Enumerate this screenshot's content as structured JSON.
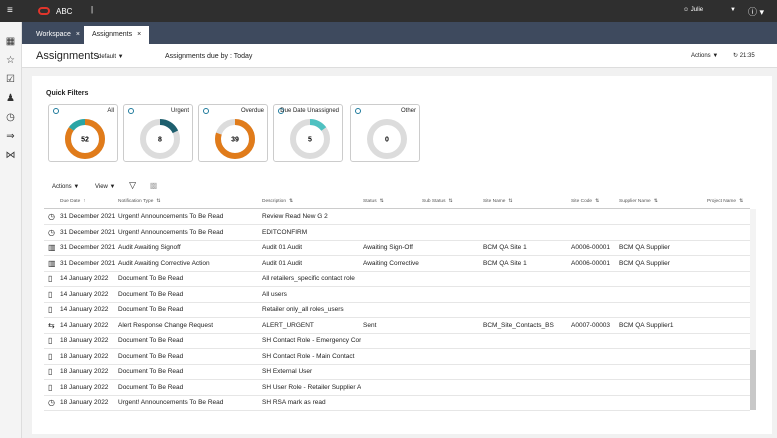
{
  "header": {
    "brand": "ABC",
    "user": "Julie"
  },
  "tabs": [
    "Workspace",
    "Assignments"
  ],
  "page": {
    "title": "Assignments",
    "view": "default",
    "due_by": "Assignments due by : Today",
    "actions": "Actions",
    "refresh_time": "21:35"
  },
  "quick_filters": {
    "title": "Quick Filters",
    "items": [
      {
        "label": "All",
        "count": 52
      },
      {
        "label": "Urgent",
        "count": 8
      },
      {
        "label": "Overdue",
        "count": 39
      },
      {
        "label": "Due Date Unassigned",
        "count": 5
      },
      {
        "label": "Other",
        "count": 0
      }
    ]
  },
  "toolbar": {
    "actions": "Actions",
    "view": "View"
  },
  "table": {
    "columns": [
      "Due Date",
      "Notification Type",
      "Description",
      "Status",
      "Sub Status",
      "Site Name",
      "Site Code",
      "Supplier Name",
      "Project Name"
    ],
    "rows": [
      {
        "due_date": "31 December 2021",
        "type": "Urgent! Announcements To Be Read",
        "description": "Review Read New G 2"
      },
      {
        "due_date": "31 December 2021",
        "type": "Urgent! Announcements To Be Read",
        "description": "EDITCONFIRM"
      },
      {
        "due_date": "31 December 2021",
        "type": "Audit Awaiting Signoff",
        "description": "Audit 01 Audit",
        "status": "Awaiting Sign-Off",
        "site_name": "BCM QA Site 1",
        "site_code": "A0006-00001",
        "supplier_name": "BCM QA Supplier"
      },
      {
        "due_date": "31 December 2021",
        "type": "Audit Awaiting Corrective Action",
        "description": "Audit 01 Audit",
        "status": "Awaiting Corrective",
        "site_name": "BCM QA Site 1",
        "site_code": "A0006-00001",
        "supplier_name": "BCM QA Supplier"
      },
      {
        "due_date": "14 January 2022",
        "type": "Document To Be Read",
        "description": "All retailers_specific contact role"
      },
      {
        "due_date": "14 January 2022",
        "type": "Document To Be Read",
        "description": "All users"
      },
      {
        "due_date": "14 January 2022",
        "type": "Document To Be Read",
        "description": "Retailer only_all roles_users"
      },
      {
        "due_date": "14 January 2022",
        "type": "Alert Response Change Request",
        "description": "ALERT_URGENT",
        "status": "Sent",
        "site_name": "BCM_Site_Contacts_BS",
        "site_code": "A0007-00003",
        "supplier_name": "BCM QA Supplier1"
      },
      {
        "due_date": "18 January 2022",
        "type": "Document To Be Read",
        "description": "SH Contact Role - Emergency Cor"
      },
      {
        "due_date": "18 January 2022",
        "type": "Document To Be Read",
        "description": "SH Contact Role - Main Contact"
      },
      {
        "due_date": "18 January 2022",
        "type": "Document To Be Read",
        "description": "SH External User"
      },
      {
        "due_date": "18 January 2022",
        "type": "Document To Be Read",
        "description": "SH User Role - Retailer Supplier A"
      },
      {
        "due_date": "18 January 2022",
        "type": "Urgent! Announcements To Be Read",
        "description": "SH RSA mark as read"
      }
    ]
  }
}
